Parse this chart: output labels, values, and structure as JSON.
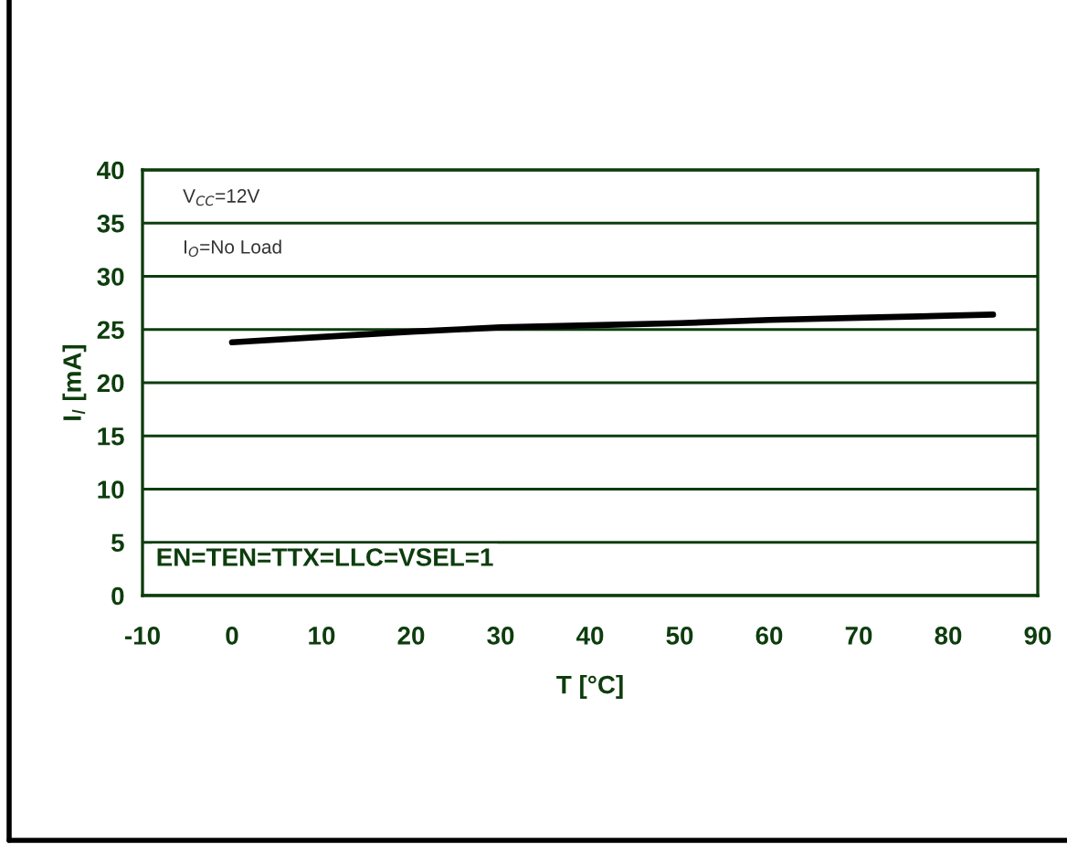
{
  "chart_data": {
    "type": "line",
    "xlabel": "T [°C]",
    "ylabel": "I$_{I}$ [mA]",
    "annotations": [
      "V$_{CC}$=12V",
      "I$_{O}$=No Load",
      "EN=TEN=TTX=LLC=VSEL=1"
    ],
    "x": [
      0,
      10,
      20,
      30,
      40,
      50,
      60,
      70,
      85
    ],
    "series": [
      {
        "color": "#000000",
        "values": [
          23.8,
          24.3,
          24.8,
          25.2,
          25.4,
          25.6,
          25.9,
          26.1,
          26.4
        ]
      }
    ],
    "xlim": [
      -10,
      90
    ],
    "xticks": [
      -10,
      0,
      10,
      20,
      30,
      40,
      50,
      60,
      70,
      80,
      90
    ],
    "ylim": [
      0,
      40
    ],
    "yticks": [
      0,
      5,
      10,
      15,
      20,
      25,
      30,
      35,
      40
    ],
    "grid": "y"
  }
}
